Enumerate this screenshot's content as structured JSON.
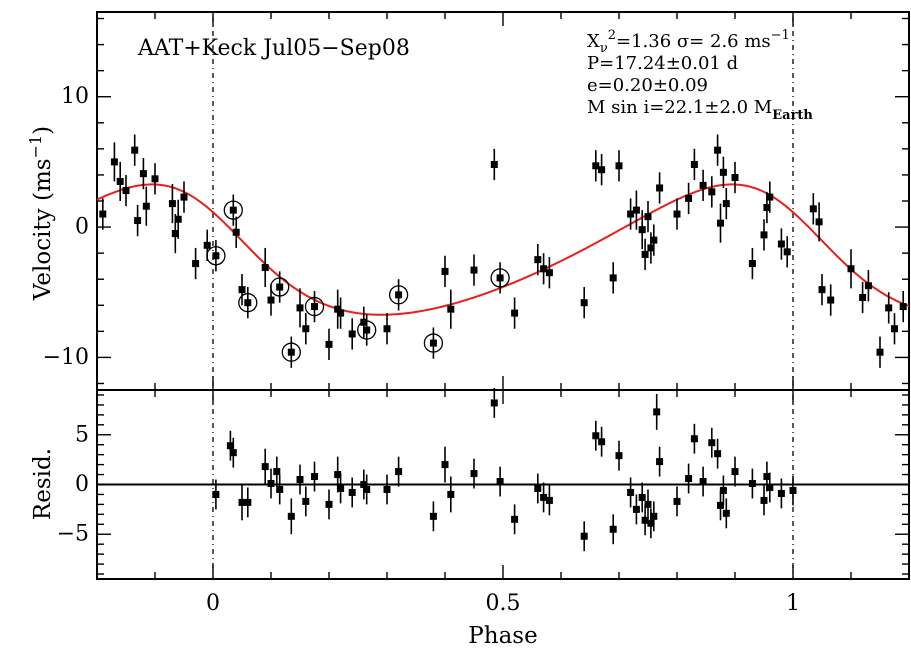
{
  "chart_data": [
    {
      "type": "scatter",
      "panel": "velocity",
      "annotation": "AAT+Keck Jul05−Sep08",
      "stats": {
        "chi2_prefix": "X",
        "chi2_sub": "ν",
        "chi2_sup": "2",
        "chi2_value": "=1.36  σ=  2.6  ms",
        "chi2_unit_sup": "−1",
        "period": "P=17.24±0.01  d",
        "ecc": "e=0.20±0.09",
        "mass_prefix": "M  sin  i=22.1±2.0  M",
        "mass_sub": "Earth"
      },
      "ylabel_main": "Velocity (ms",
      "ylabel_sup": "−1",
      "ylabel_close": ")",
      "xlim": [
        -0.2,
        1.2
      ],
      "ylim": [
        -12.5,
        16.5
      ],
      "yticks": [
        -10,
        0,
        10
      ],
      "ytick_labels": [
        "−10",
        "0",
        "10"
      ],
      "model_color": "#e8201c",
      "model": {
        "K": 5.0,
        "offset": -2.3,
        "e": 0.2,
        "w_deg": 55,
        "tp": 0.0
      },
      "points": [
        [
          -0.19,
          1.0,
          1.2
        ],
        [
          -0.17,
          5.0,
          1.5
        ],
        [
          -0.16,
          3.5,
          1.5
        ],
        [
          -0.15,
          2.8,
          1.2
        ],
        [
          -0.135,
          5.9,
          1.2
        ],
        [
          -0.13,
          0.5,
          1.2
        ],
        [
          -0.12,
          4.1,
          1.2
        ],
        [
          -0.115,
          1.6,
          1.5
        ],
        [
          -0.1,
          3.7,
          1.2
        ],
        [
          -0.07,
          1.8,
          1.5
        ],
        [
          -0.065,
          -0.5,
          1.5
        ],
        [
          -0.06,
          0.6,
          1.5
        ],
        [
          -0.05,
          2.3,
          1.2
        ],
        [
          -0.03,
          -2.8,
          1.2
        ],
        [
          -0.01,
          -1.4,
          1.2
        ],
        [
          0.005,
          -2.2,
          1.2
        ],
        [
          0.035,
          1.3,
          1.2
        ],
        [
          0.04,
          -0.4,
          1.2
        ],
        [
          0.05,
          -4.8,
          1.2
        ],
        [
          0.06,
          -5.8,
          1.2
        ],
        [
          0.09,
          -3.1,
          1.5
        ],
        [
          0.1,
          -5.6,
          1.2
        ],
        [
          0.115,
          -4.6,
          1.2
        ],
        [
          0.135,
          -9.6,
          1.2
        ],
        [
          0.15,
          -6.2,
          1.5
        ],
        [
          0.16,
          -7.8,
          1.2
        ],
        [
          0.175,
          -6.1,
          1.2
        ],
        [
          0.2,
          -9.0,
          1.2
        ],
        [
          0.215,
          -6.3,
          1.5
        ],
        [
          0.22,
          -6.6,
          1.2
        ],
        [
          0.24,
          -8.2,
          1.2
        ],
        [
          0.26,
          -7.3,
          1.2
        ],
        [
          0.265,
          -7.9,
          1.2
        ],
        [
          0.3,
          -7.8,
          1.2
        ],
        [
          0.32,
          -5.2,
          1.2
        ],
        [
          0.38,
          -8.9,
          1.2
        ],
        [
          0.4,
          -3.4,
          1.2
        ],
        [
          0.41,
          -6.3,
          1.5
        ],
        [
          0.45,
          -3.3,
          1.2
        ],
        [
          0.485,
          4.8,
          1.2
        ],
        [
          0.495,
          -3.9,
          1.2
        ],
        [
          0.52,
          -6.6,
          1.2
        ],
        [
          0.56,
          -2.5,
          1.2
        ],
        [
          0.57,
          -3.2,
          1.2
        ],
        [
          0.58,
          -3.5,
          1.2
        ],
        [
          0.64,
          -5.8,
          1.2
        ],
        [
          0.66,
          4.7,
          1.2
        ],
        [
          0.67,
          4.4,
          1.2
        ],
        [
          0.69,
          -3.9,
          1.2
        ],
        [
          0.7,
          4.7,
          1.2
        ],
        [
          0.72,
          1.0,
          1.2
        ],
        [
          0.73,
          1.3,
          1.5
        ],
        [
          0.74,
          -0.2,
          1.5
        ],
        [
          0.745,
          -2.1,
          1.2
        ],
        [
          0.75,
          0.8,
          1.2
        ],
        [
          0.755,
          -1.6,
          1.2
        ],
        [
          0.76,
          -1.0,
          1.2
        ],
        [
          0.77,
          3.0,
          1.2
        ],
        [
          0.8,
          1.0,
          1.2
        ],
        [
          0.82,
          2.2,
          1.2
        ],
        [
          0.83,
          4.8,
          1.2
        ],
        [
          0.845,
          3.2,
          1.2
        ],
        [
          0.86,
          2.7,
          1.2
        ],
        [
          0.87,
          5.9,
          1.2
        ],
        [
          0.875,
          0.3,
          1.5
        ],
        [
          0.88,
          4.2,
          1.2
        ],
        [
          0.885,
          1.8,
          1.2
        ],
        [
          0.9,
          3.8,
          1.2
        ],
        [
          0.93,
          -2.8,
          1.2
        ],
        [
          0.95,
          -0.6,
          1.2
        ],
        [
          0.955,
          1.5,
          1.2
        ],
        [
          0.96,
          2.3,
          1.2
        ],
        [
          0.98,
          -1.3,
          1.2
        ],
        [
          0.99,
          -1.9,
          1.2
        ],
        [
          1.035,
          1.4,
          1.2
        ],
        [
          1.045,
          0.4,
          1.5
        ],
        [
          1.05,
          -4.8,
          1.2
        ],
        [
          1.065,
          -5.6,
          1.2
        ],
        [
          1.1,
          -3.2,
          1.5
        ],
        [
          1.12,
          -5.4,
          1.2
        ],
        [
          1.13,
          -4.5,
          1.2
        ],
        [
          1.15,
          -9.6,
          1.2
        ],
        [
          1.165,
          -6.2,
          1.2
        ],
        [
          1.175,
          -7.8,
          1.2
        ],
        [
          1.19,
          -6.1,
          1.2
        ]
      ],
      "circled": [
        [
          0.035,
          1.3
        ],
        [
          0.005,
          -2.2
        ],
        [
          0.06,
          -5.8
        ],
        [
          0.115,
          -4.6
        ],
        [
          0.135,
          -9.6
        ],
        [
          0.175,
          -6.1
        ],
        [
          0.265,
          -7.9
        ],
        [
          0.32,
          -5.2
        ],
        [
          0.38,
          -8.9
        ],
        [
          0.495,
          -3.9
        ]
      ]
    },
    {
      "type": "scatter",
      "panel": "residuals",
      "ylabel": "Resid.",
      "xlabel": "Phase",
      "xlim": [
        -0.2,
        1.2
      ],
      "ylim": [
        -9.5,
        9.5
      ],
      "yticks": [
        -5,
        0,
        5
      ],
      "ytick_labels": [
        "−5",
        "0",
        "5"
      ],
      "xticks": [
        0,
        0.5,
        1
      ],
      "xtick_labels": [
        "0",
        "0.5",
        "1"
      ],
      "points": [
        [
          0.005,
          -1.0,
          1.5
        ],
        [
          0.03,
          3.9,
          1.5
        ],
        [
          0.035,
          3.2,
          1.5
        ],
        [
          0.05,
          -1.8,
          1.8
        ],
        [
          0.06,
          -1.8,
          1.5
        ],
        [
          0.09,
          1.8,
          1.8
        ],
        [
          0.1,
          0.1,
          1.5
        ],
        [
          0.11,
          1.3,
          1.5
        ],
        [
          0.115,
          -0.5,
          1.5
        ],
        [
          0.135,
          -3.2,
          1.8
        ],
        [
          0.15,
          0.5,
          1.5
        ],
        [
          0.16,
          -1.7,
          1.5
        ],
        [
          0.175,
          0.8,
          1.5
        ],
        [
          0.2,
          -2.0,
          1.5
        ],
        [
          0.215,
          1.0,
          1.8
        ],
        [
          0.22,
          -0.4,
          1.5
        ],
        [
          0.24,
          -0.8,
          1.5
        ],
        [
          0.26,
          0.0,
          1.5
        ],
        [
          0.265,
          -0.5,
          1.5
        ],
        [
          0.3,
          -0.5,
          1.5
        ],
        [
          0.32,
          1.3,
          1.5
        ],
        [
          0.38,
          -3.2,
          1.5
        ],
        [
          0.4,
          2.0,
          1.8
        ],
        [
          0.41,
          -1.0,
          1.8
        ],
        [
          0.45,
          1.1,
          1.5
        ],
        [
          0.485,
          8.2,
          1.5
        ],
        [
          0.495,
          0.3,
          1.5
        ],
        [
          0.52,
          -3.5,
          1.5
        ],
        [
          0.56,
          -0.4,
          1.5
        ],
        [
          0.57,
          -1.3,
          1.5
        ],
        [
          0.58,
          -1.6,
          1.5
        ],
        [
          0.64,
          -5.2,
          1.5
        ],
        [
          0.66,
          4.9,
          1.5
        ],
        [
          0.67,
          4.3,
          1.5
        ],
        [
          0.69,
          -4.5,
          1.5
        ],
        [
          0.7,
          2.9,
          1.5
        ],
        [
          0.72,
          -0.8,
          1.5
        ],
        [
          0.73,
          -2.5,
          1.5
        ],
        [
          0.74,
          -1.3,
          1.5
        ],
        [
          0.745,
          -3.6,
          1.5
        ],
        [
          0.75,
          -2.0,
          1.5
        ],
        [
          0.755,
          -3.9,
          1.5
        ],
        [
          0.76,
          -3.2,
          1.5
        ],
        [
          0.765,
          7.3,
          1.8
        ],
        [
          0.77,
          2.3,
          1.5
        ],
        [
          0.8,
          -1.7,
          1.5
        ],
        [
          0.82,
          0.6,
          1.5
        ],
        [
          0.83,
          4.6,
          1.5
        ],
        [
          0.845,
          0.3,
          1.5
        ],
        [
          0.86,
          4.2,
          1.5
        ],
        [
          0.87,
          3.1,
          1.5
        ],
        [
          0.875,
          -2.1,
          1.5
        ],
        [
          0.88,
          -0.6,
          1.5
        ],
        [
          0.885,
          -2.9,
          1.5
        ],
        [
          0.9,
          1.3,
          1.5
        ],
        [
          0.93,
          0.1,
          1.5
        ],
        [
          0.95,
          -1.6,
          1.5
        ],
        [
          0.955,
          0.8,
          1.5
        ],
        [
          0.96,
          -0.3,
          1.5
        ],
        [
          0.98,
          -0.9,
          1.5
        ],
        [
          1.0,
          -0.6,
          1.5
        ]
      ]
    }
  ]
}
